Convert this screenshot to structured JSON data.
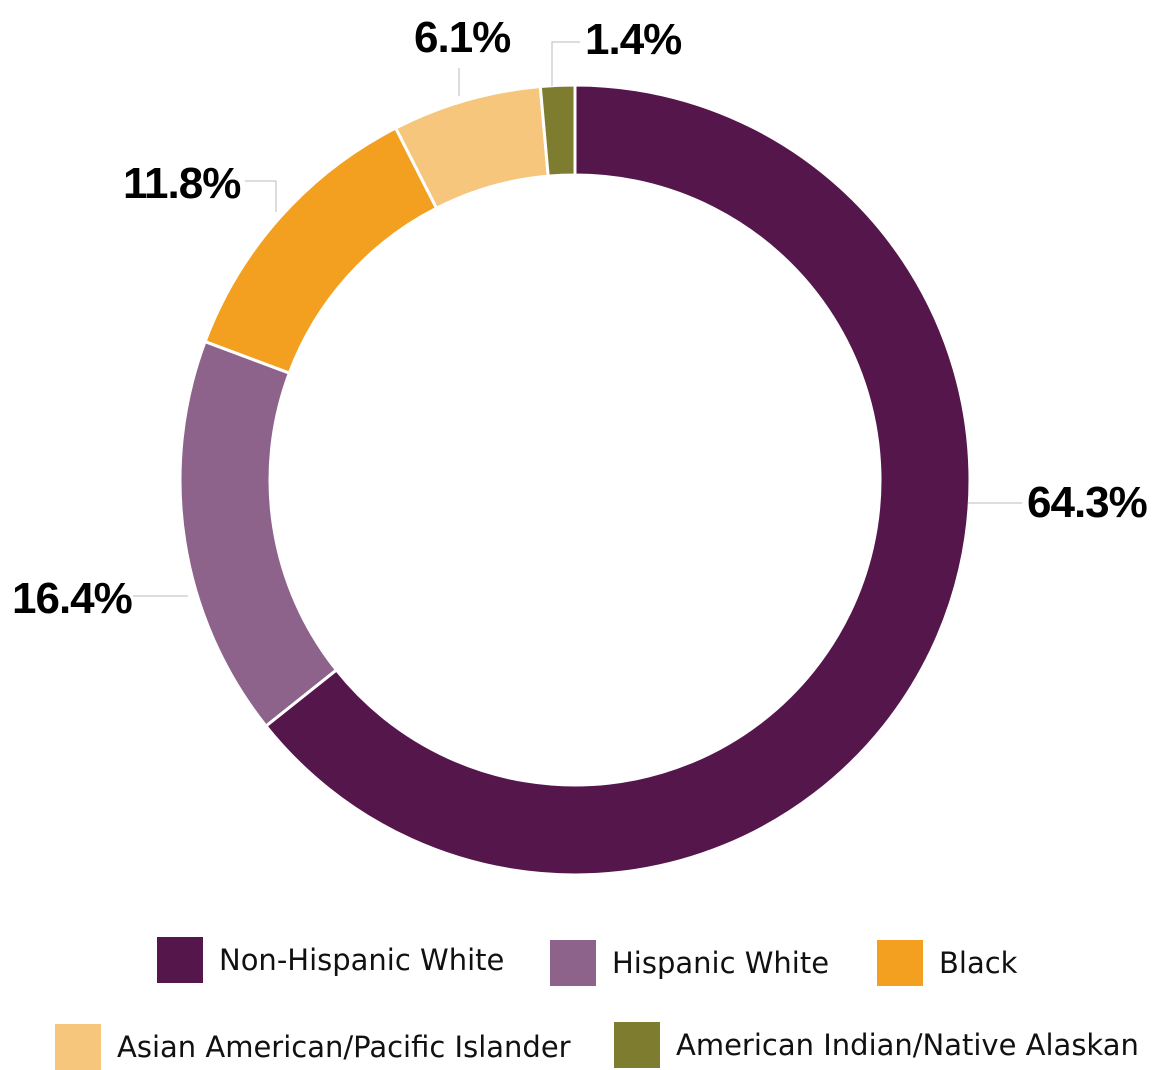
{
  "chart_data": {
    "type": "donut",
    "title": "",
    "slices": [
      {
        "name": "Non-Hispanic White",
        "value": 64.3,
        "label": "64.3%",
        "color": "#55164c"
      },
      {
        "name": "Hispanic White",
        "value": 16.4,
        "label": "16.4%",
        "color": "#8d638b"
      },
      {
        "name": "Black",
        "value": 11.8,
        "label": "11.8%",
        "color": "#f3a020"
      },
      {
        "name": "Asian American/Pacific Islander",
        "value": 6.1,
        "label": "6.1%",
        "color": "#f6c67d"
      },
      {
        "name": "American Indian/Native Alaskan",
        "value": 1.4,
        "label": "1.4%",
        "color": "#7e7c2f"
      }
    ],
    "legend_position": "bottom"
  }
}
